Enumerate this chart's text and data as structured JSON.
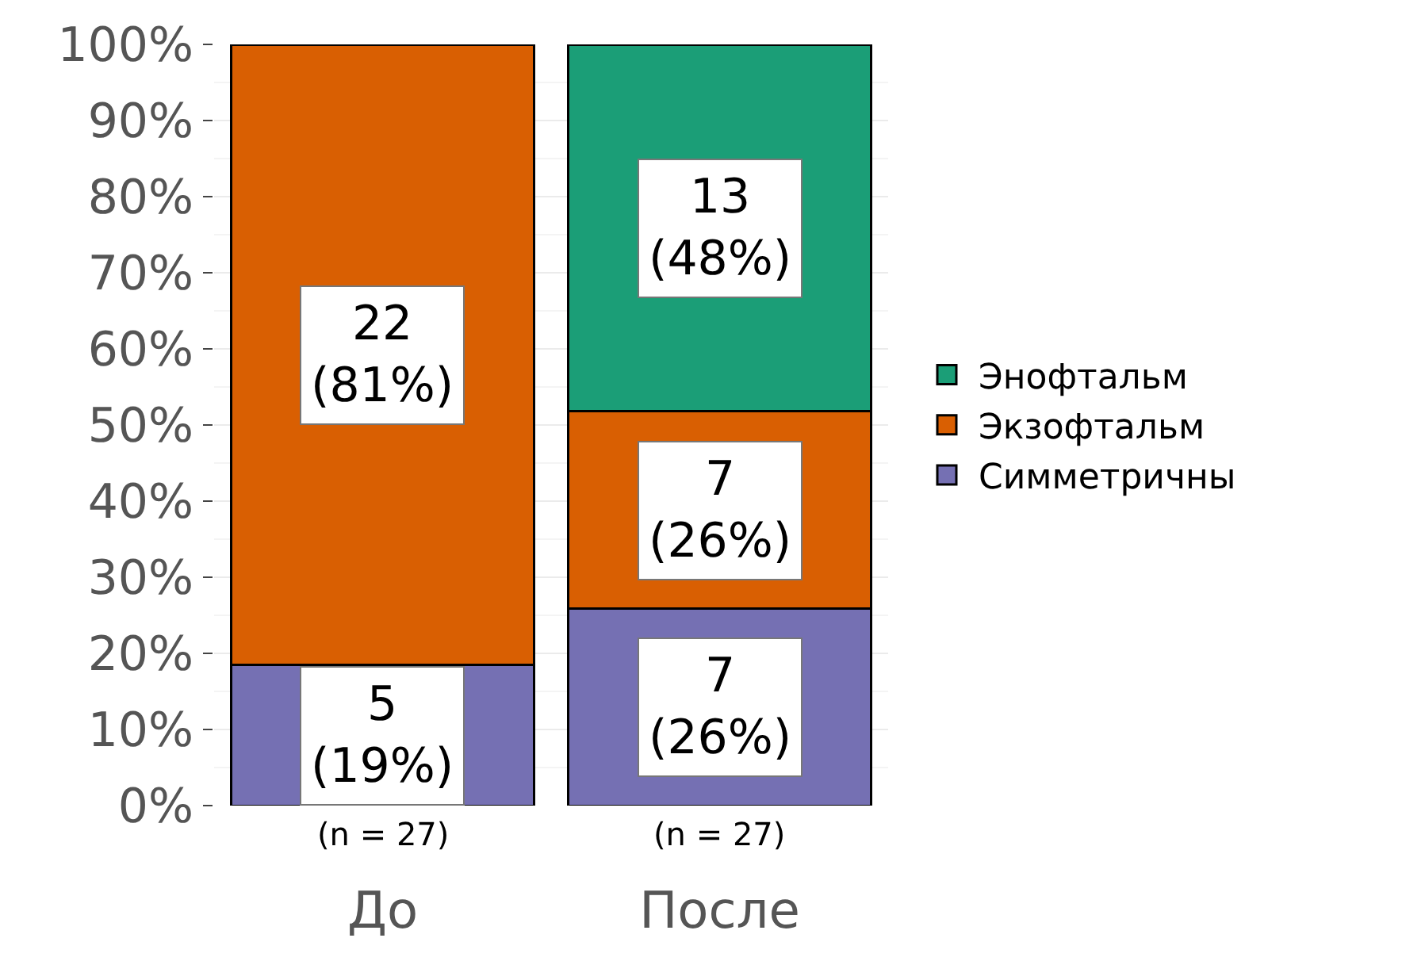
{
  "chart_data": {
    "type": "bar",
    "stacked": true,
    "categories": [
      "До",
      "После"
    ],
    "series": [
      {
        "name": "Симметричны",
        "color": "#7570b3",
        "values": [
          18.5,
          25.9
        ],
        "value_labels": [
          "5\n(19%)",
          "7\n(26%)"
        ]
      },
      {
        "name": "Экзофтальм",
        "color": "#d95f02",
        "values": [
          81.5,
          25.9
        ],
        "value_labels": [
          "22\n(81%)",
          "7\n(26%)"
        ]
      },
      {
        "name": "Энофтальм",
        "color": "#1b9e77",
        "values": [
          null,
          48.1
        ],
        "value_labels": [
          null,
          "13\n(48%)"
        ]
      }
    ],
    "ylim": [
      0,
      100
    ],
    "yticks": [
      {
        "value": 0,
        "label": "0%"
      },
      {
        "value": 10,
        "label": "10%"
      },
      {
        "value": 20,
        "label": "20%"
      },
      {
        "value": 30,
        "label": "30%"
      },
      {
        "value": 40,
        "label": "40%"
      },
      {
        "value": 50,
        "label": "50%"
      },
      {
        "value": 60,
        "label": "60%"
      },
      {
        "value": 70,
        "label": "70%"
      },
      {
        "value": 80,
        "label": "80%"
      },
      {
        "value": 90,
        "label": "90%"
      },
      {
        "value": 100,
        "label": "100%"
      }
    ],
    "grid": "y",
    "legend": "right",
    "annotations": [
      "(n = 27)",
      "(n = 27)"
    ]
  }
}
